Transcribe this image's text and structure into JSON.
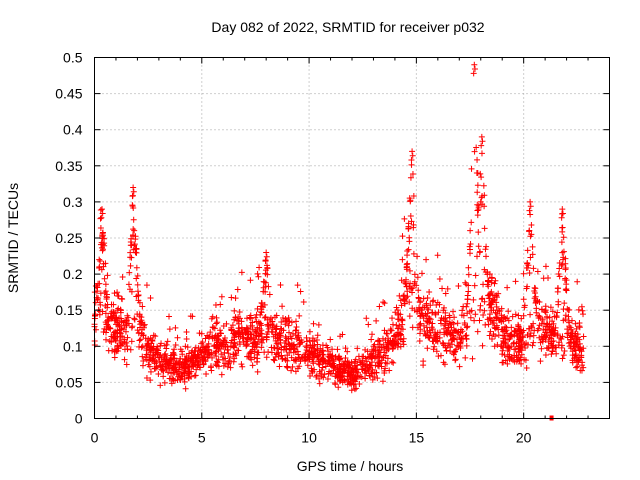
{
  "chart_data": {
    "type": "scatter",
    "title": "Day 082 of 2022, SRMTID for receiver p032",
    "xlabel": "GPS time / hours",
    "ylabel": "SRMTID / TECUs",
    "xlim": [
      0,
      24
    ],
    "ylim": [
      0,
      0.5
    ],
    "xticks": [
      0,
      5,
      10,
      15,
      20
    ],
    "xtick_labels": [
      "0",
      "5",
      "10",
      "15",
      "20"
    ],
    "yticks": [
      0,
      0.05,
      0.1,
      0.15,
      0.2,
      0.25,
      0.3,
      0.35,
      0.4,
      0.45,
      0.5
    ],
    "ytick_labels": [
      "0",
      "0.05",
      "0.1",
      "0.15",
      "0.2",
      "0.25",
      "0.3",
      "0.35",
      "0.4",
      "0.45",
      "0.5"
    ],
    "grid": true,
    "marker": "+",
    "color": "#ff0000",
    "series": [
      {
        "name": "SRMTID",
        "x_range": [
          0,
          22.8
        ],
        "sample_count": 2300,
        "trend": [
          [
            0.0,
            0.13
          ],
          [
            0.3,
            0.16
          ],
          [
            0.6,
            0.12
          ],
          [
            1.0,
            0.12
          ],
          [
            1.5,
            0.11
          ],
          [
            1.8,
            0.14
          ],
          [
            2.2,
            0.12
          ],
          [
            2.6,
            0.09
          ],
          [
            3.0,
            0.08
          ],
          [
            3.5,
            0.075
          ],
          [
            4.0,
            0.07
          ],
          [
            4.5,
            0.075
          ],
          [
            5.0,
            0.09
          ],
          [
            5.5,
            0.1
          ],
          [
            6.0,
            0.1
          ],
          [
            6.5,
            0.11
          ],
          [
            7.0,
            0.11
          ],
          [
            7.5,
            0.11
          ],
          [
            8.0,
            0.12
          ],
          [
            8.5,
            0.11
          ],
          [
            9.0,
            0.1
          ],
          [
            9.5,
            0.1
          ],
          [
            10.0,
            0.09
          ],
          [
            10.5,
            0.085
          ],
          [
            11.0,
            0.08
          ],
          [
            11.5,
            0.065
          ],
          [
            12.0,
            0.06
          ],
          [
            12.5,
            0.07
          ],
          [
            13.0,
            0.08
          ],
          [
            13.5,
            0.09
          ],
          [
            14.0,
            0.12
          ],
          [
            14.5,
            0.16
          ],
          [
            14.8,
            0.18
          ],
          [
            15.2,
            0.14
          ],
          [
            15.6,
            0.12
          ],
          [
            16.0,
            0.13
          ],
          [
            16.5,
            0.12
          ],
          [
            17.0,
            0.11
          ],
          [
            17.5,
            0.14
          ],
          [
            17.8,
            0.17
          ],
          [
            18.2,
            0.16
          ],
          [
            18.6,
            0.15
          ],
          [
            19.0,
            0.12
          ],
          [
            19.5,
            0.1
          ],
          [
            20.0,
            0.11
          ],
          [
            20.5,
            0.13
          ],
          [
            21.0,
            0.12
          ],
          [
            21.5,
            0.11
          ],
          [
            22.0,
            0.12
          ],
          [
            22.5,
            0.1
          ],
          [
            22.8,
            0.09
          ]
        ],
        "peaks": [
          {
            "x": 0.35,
            "y": 0.29
          },
          {
            "x": 1.8,
            "y": 0.32
          },
          {
            "x": 8.0,
            "y": 0.23
          },
          {
            "x": 14.8,
            "y": 0.37
          },
          {
            "x": 17.7,
            "y": 0.49
          },
          {
            "x": 18.05,
            "y": 0.39
          },
          {
            "x": 20.3,
            "y": 0.3
          },
          {
            "x": 21.8,
            "y": 0.29
          }
        ],
        "outliers": [
          {
            "x": 21.3,
            "y": 0.0
          }
        ]
      }
    ]
  }
}
